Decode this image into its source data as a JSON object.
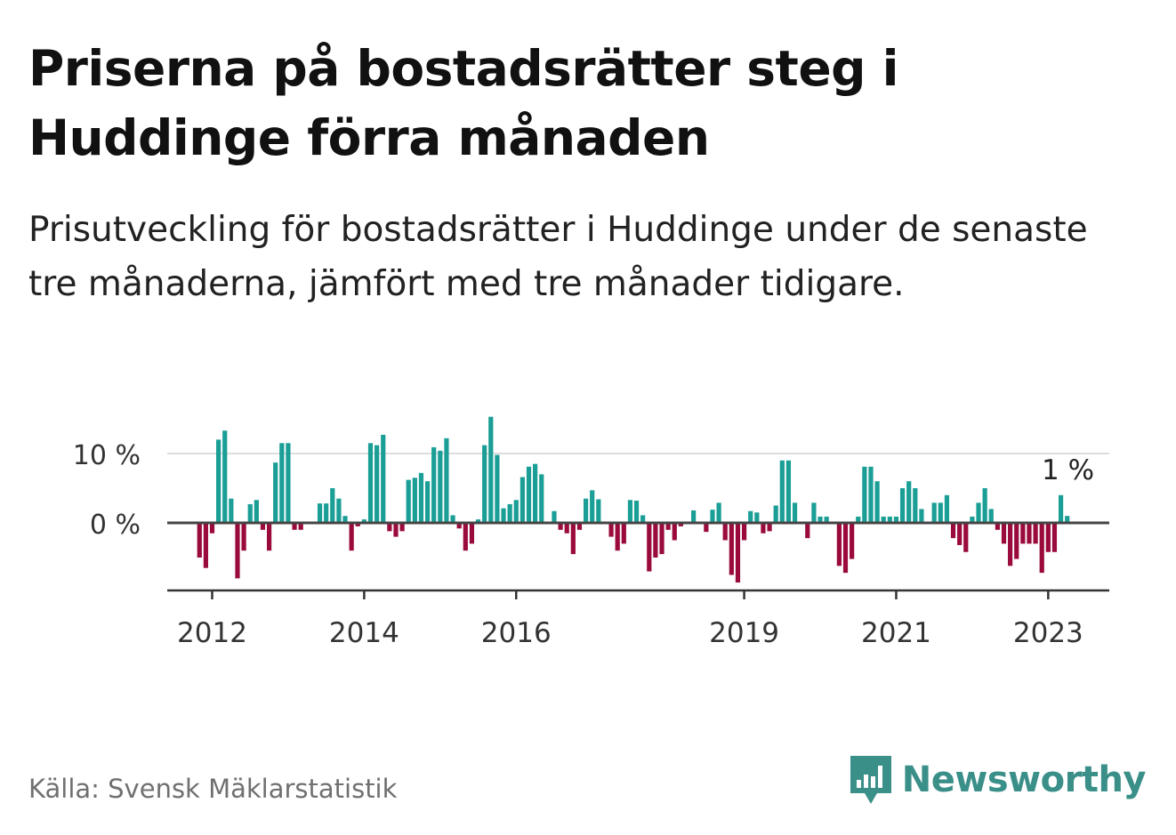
{
  "title": "Priserna på bostadsrätter steg i Huddinge förra månaden",
  "subtitle": "Prisutveckling för bostadsrätter i Huddinge under de senaste tre månaderna, jämfört med tre månader tidigare.",
  "source": "Källa: Svensk Mäklarstatistik",
  "brand": {
    "name": "Newsworthy",
    "icon": "newsworthy-bar-chart-icon",
    "color": "#3a8f89"
  },
  "colors": {
    "positive": "#1a9e96",
    "negative": "#9a0a3c",
    "axis": "#333333",
    "grid": "#dddddd",
    "zero": "#444444"
  },
  "chart_data": {
    "type": "bar",
    "unit": "%",
    "frequency": "monthly",
    "start": "2011-11",
    "values": [
      -5,
      -6.5,
      -1.5,
      12,
      13.3,
      3.5,
      -8,
      -4,
      2.7,
      3.3,
      -1,
      -4,
      8.7,
      11.5,
      11.5,
      -1,
      -1,
      0,
      0,
      2.8,
      2.8,
      5,
      3.5,
      1,
      -4,
      -0.5,
      0.5,
      11.5,
      11.2,
      12.7,
      -1.2,
      -2,
      -1.2,
      6.2,
      6.5,
      7.2,
      6,
      10.9,
      10.4,
      12.2,
      1.1,
      -0.8,
      -4,
      -3,
      0.5,
      11.2,
      15.3,
      9.8,
      2.1,
      2.7,
      3.3,
      6.6,
      8.1,
      8.5,
      7,
      0,
      1.7,
      -1,
      -1.5,
      -4.5,
      -1,
      3.5,
      4.7,
      3.4,
      0.2,
      -2,
      -4,
      -3,
      3.3,
      3.2,
      1.1,
      -7,
      -5,
      -4.5,
      -1,
      -2.5,
      -0.5,
      0.2,
      1.8,
      0,
      -1.3,
      1.9,
      2.9,
      -2.5,
      -7.5,
      -8.6,
      -2.5,
      1.7,
      1.5,
      -1.5,
      -1.2,
      2.5,
      9,
      9,
      2.9,
      0,
      -2.2,
      2.9,
      0.9,
      0.9,
      0,
      -6.2,
      -7.2,
      -5.2,
      0.9,
      8.1,
      8.1,
      6,
      0.9,
      0.9,
      0.9,
      5,
      6,
      5,
      2,
      0,
      2.9,
      2.9,
      4,
      -2.2,
      -3.2,
      -4.2,
      0.9,
      2.9,
      5,
      2,
      -1,
      -3,
      -6.2,
      -5.2,
      -3,
      -3,
      -3,
      -7.2,
      -4.2,
      -4.2,
      4,
      1
    ],
    "x_ticks": [
      "2012",
      "2014",
      "2016",
      "2019",
      "2021",
      "2023"
    ],
    "x_tick_dates": [
      "2012-01",
      "2014-01",
      "2016-01",
      "2019-01",
      "2021-01",
      "2023-01"
    ],
    "y_ticks": [
      0,
      10
    ],
    "y_tick_labels": [
      "0 %",
      "10 %"
    ],
    "ylim": [
      -10,
      16
    ],
    "grid": true,
    "annotation": {
      "text": "1 %",
      "date": "2023-03"
    },
    "xlabel": "",
    "ylabel": ""
  }
}
